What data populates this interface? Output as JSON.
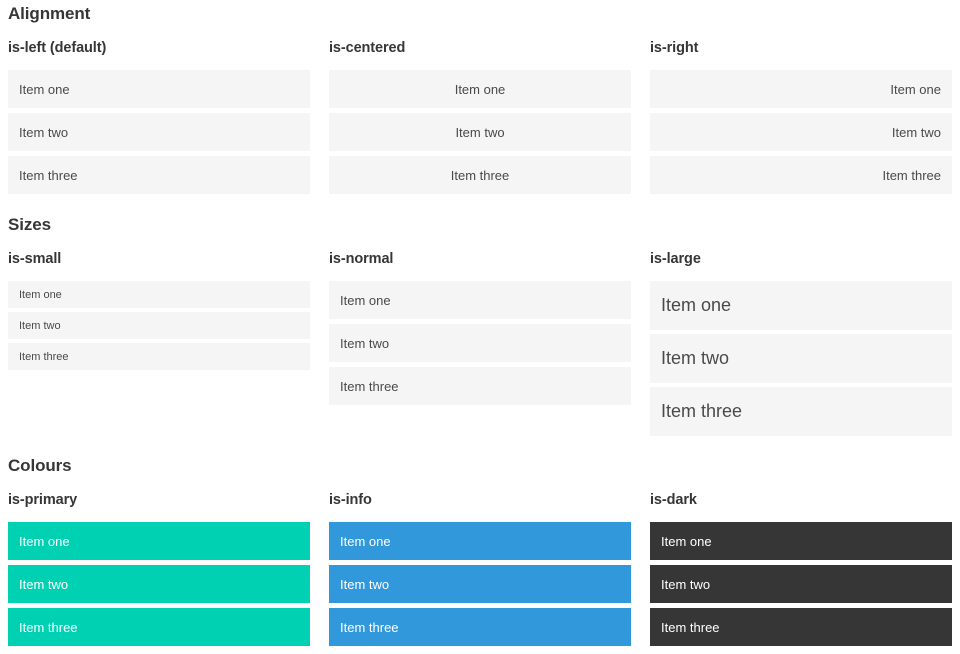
{
  "sections": [
    {
      "title": "Alignment",
      "columns": [
        {
          "label": "is-left (default)",
          "variant": "align-left",
          "items": [
            "Item one",
            "Item two",
            "Item three"
          ]
        },
        {
          "label": "is-centered",
          "variant": "align-center",
          "items": [
            "Item one",
            "Item two",
            "Item three"
          ]
        },
        {
          "label": "is-right",
          "variant": "align-right",
          "items": [
            "Item one",
            "Item two",
            "Item three"
          ]
        }
      ]
    },
    {
      "title": "Sizes",
      "columns": [
        {
          "label": "is-small",
          "variant": "size-small",
          "items": [
            "Item one",
            "Item two",
            "Item three"
          ]
        },
        {
          "label": "is-normal",
          "variant": "size-normal",
          "items": [
            "Item one",
            "Item two",
            "Item three"
          ]
        },
        {
          "label": "is-large",
          "variant": "size-large",
          "items": [
            "Item one",
            "Item two",
            "Item three"
          ]
        }
      ]
    },
    {
      "title": "Colours",
      "columns": [
        {
          "label": "is-primary",
          "variant": "color-primary",
          "items": [
            "Item one",
            "Item two",
            "Item three"
          ]
        },
        {
          "label": "is-info",
          "variant": "color-info",
          "items": [
            "Item one",
            "Item two",
            "Item three"
          ]
        },
        {
          "label": "is-dark",
          "variant": "color-dark",
          "items": [
            "Item one",
            "Item two",
            "Item three"
          ]
        }
      ]
    }
  ],
  "colors": {
    "primary": "#00d1b2",
    "info": "#3298dc",
    "dark": "#363636",
    "item_bg": "#f5f5f5",
    "item_text": "#4a4a4a",
    "heading_text": "#363636",
    "on_color_text": "#ffffff"
  }
}
